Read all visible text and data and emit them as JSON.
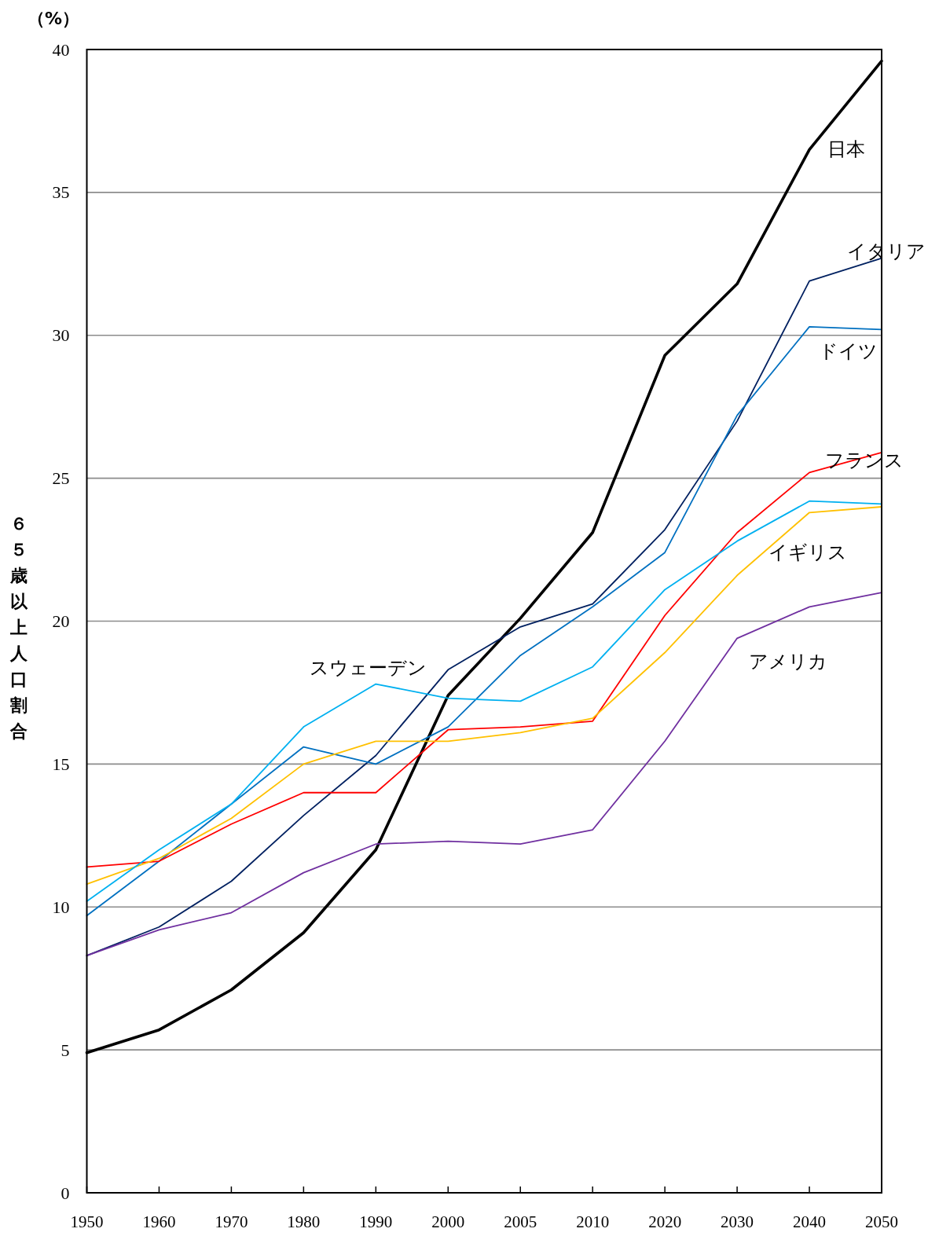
{
  "chart_data": {
    "type": "line",
    "ylabel": "６５歳以上人口割合",
    "annotations": [
      "（%）"
    ],
    "categories": [
      "1950",
      "1960",
      "1970",
      "1980",
      "1990",
      "2000",
      "2005",
      "2010",
      "2020",
      "2030",
      "2040",
      "2050"
    ],
    "ylim": [
      0,
      40
    ],
    "yticks": [
      0,
      5,
      10,
      15,
      20,
      25,
      30,
      35,
      40
    ],
    "grid": "y",
    "series": [
      {
        "name": "日本",
        "color": "#000000",
        "values": [
          4.9,
          5.7,
          7.1,
          9.1,
          12.0,
          17.4,
          20.1,
          23.1,
          29.3,
          31.8,
          36.5,
          39.6
        ]
      },
      {
        "name": "イタリア",
        "color": "#002060",
        "values": [
          8.3,
          9.3,
          10.9,
          13.2,
          15.3,
          18.3,
          19.8,
          20.6,
          23.2,
          27.0,
          31.9,
          32.7
        ]
      },
      {
        "name": "ドイツ",
        "color": "#0070c0",
        "values": [
          9.7,
          11.6,
          13.6,
          15.6,
          15.0,
          16.3,
          18.8,
          20.5,
          22.4,
          27.2,
          30.3,
          30.2
        ]
      },
      {
        "name": "フランス",
        "color": "#ff0000",
        "values": [
          11.4,
          11.6,
          12.9,
          14.0,
          14.0,
          16.2,
          16.3,
          16.5,
          20.2,
          23.1,
          25.2,
          25.9
        ]
      },
      {
        "name": "イギリス",
        "color": "#ffc000",
        "values": [
          10.8,
          11.7,
          13.1,
          15.0,
          15.8,
          15.8,
          16.1,
          16.6,
          18.9,
          21.6,
          23.8,
          24.0
        ]
      },
      {
        "name": "アメリカ",
        "color": "#7030a0",
        "values": [
          8.3,
          9.2,
          9.8,
          11.2,
          12.2,
          12.3,
          12.2,
          12.7,
          15.8,
          19.4,
          20.5,
          21.0
        ]
      },
      {
        "name": "スウェーデン",
        "color": "#00b0f0",
        "values": [
          10.2,
          12.0,
          13.6,
          16.3,
          17.8,
          17.3,
          17.2,
          18.4,
          21.1,
          22.8,
          24.2,
          24.1
        ]
      }
    ]
  }
}
